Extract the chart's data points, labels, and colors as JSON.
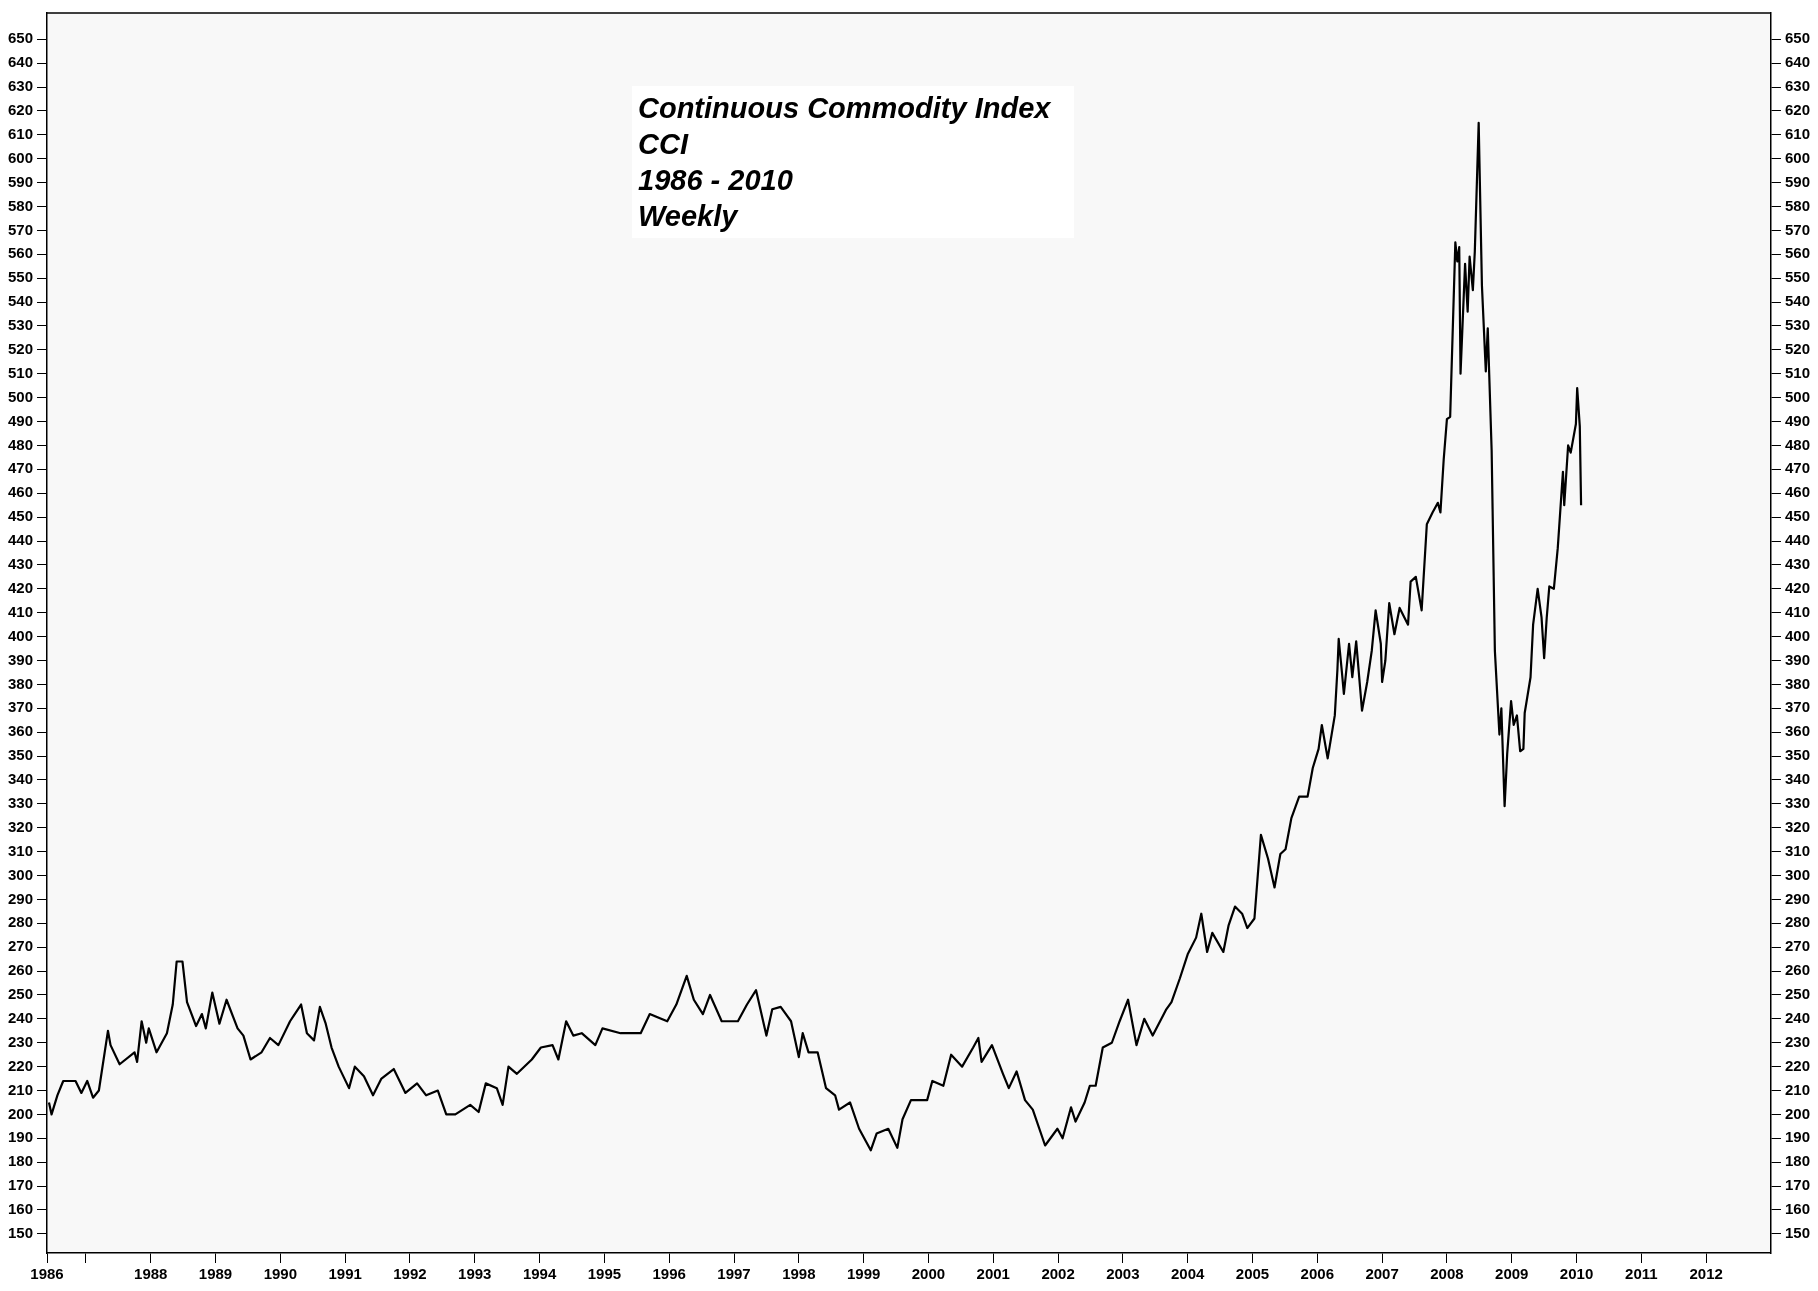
{
  "chart_data": {
    "type": "line",
    "title": "Continuous Commodity Index\nCCI\n1986 - 2010\nWeekly",
    "xlim": [
      1986.4,
      2013
    ],
    "xticks": [
      {
        "value": 1986.4,
        "label": "1986"
      },
      {
        "value": 1987,
        "label": null
      },
      {
        "value": 1988,
        "label": "1988"
      },
      {
        "value": 1989,
        "label": "1989"
      },
      {
        "value": 1990,
        "label": "1990"
      },
      {
        "value": 1991,
        "label": "1991"
      },
      {
        "value": 1992,
        "label": "1992"
      },
      {
        "value": 1993,
        "label": "1993"
      },
      {
        "value": 1994,
        "label": "1994"
      },
      {
        "value": 1995,
        "label": "1995"
      },
      {
        "value": 1996,
        "label": "1996"
      },
      {
        "value": 1997,
        "label": "1997"
      },
      {
        "value": 1998,
        "label": "1998"
      },
      {
        "value": 1999,
        "label": "1999"
      },
      {
        "value": 2000,
        "label": "2000"
      },
      {
        "value": 2001,
        "label": "2001"
      },
      {
        "value": 2002,
        "label": "2002"
      },
      {
        "value": 2003,
        "label": "2003"
      },
      {
        "value": 2004,
        "label": "2004"
      },
      {
        "value": 2005,
        "label": "2005"
      },
      {
        "value": 2006,
        "label": "2006"
      },
      {
        "value": 2007,
        "label": "2007"
      },
      {
        "value": 2008,
        "label": "2008"
      },
      {
        "value": 2009,
        "label": "2009"
      },
      {
        "value": 2010,
        "label": "2010"
      },
      {
        "value": 2011,
        "label": "2011"
      },
      {
        "value": 2012,
        "label": "2012"
      }
    ],
    "ylim": [
      142,
      661
    ],
    "yticks": [
      150,
      160,
      170,
      180,
      190,
      200,
      210,
      220,
      230,
      240,
      250,
      260,
      270,
      280,
      290,
      300,
      310,
      320,
      330,
      340,
      350,
      360,
      370,
      380,
      390,
      400,
      410,
      420,
      430,
      440,
      450,
      460,
      470,
      480,
      490,
      500,
      510,
      520,
      530,
      540,
      550,
      560,
      570,
      580,
      590,
      600,
      610,
      620,
      630,
      640,
      650
    ],
    "y2lim": [
      142,
      661
    ],
    "y2ticks": [
      150,
      160,
      170,
      180,
      190,
      200,
      210,
      220,
      230,
      240,
      250,
      260,
      270,
      280,
      290,
      300,
      310,
      320,
      330,
      340,
      350,
      360,
      370,
      380,
      390,
      400,
      410,
      420,
      430,
      440,
      450,
      460,
      470,
      480,
      490,
      500,
      510,
      520,
      530,
      540,
      550,
      560,
      570,
      580,
      590,
      600,
      610,
      620,
      630,
      640,
      650
    ],
    "grid": false,
    "marker": "none",
    "line_style": "solid",
    "series": [
      {
        "color": "#000000",
        "x": [
          1986.43,
          1986.47,
          1986.56,
          1986.65,
          1986.84,
          1986.93,
          1987.02,
          1987.11,
          1987.2,
          1987.34,
          1987.38,
          1987.52,
          1987.75,
          1987.79,
          1987.86,
          1987.93,
          1987.97,
          1988.09,
          1988.25,
          1988.34,
          1988.4,
          1988.49,
          1988.56,
          1988.7,
          1988.79,
          1988.85,
          1988.95,
          1989.06,
          1989.17,
          1989.34,
          1989.43,
          1989.54,
          1989.71,
          1989.84,
          1989.97,
          1990.15,
          1990.32,
          1990.41,
          1990.52,
          1990.61,
          1990.7,
          1990.79,
          1990.9,
          1991.06,
          1991.15,
          1991.29,
          1991.43,
          1991.56,
          1991.75,
          1991.93,
          1992.11,
          1992.25,
          1992.43,
          1992.56,
          1992.7,
          1992.93,
          1993.06,
          1993.17,
          1993.34,
          1993.43,
          1993.52,
          1993.65,
          1993.88,
          1994.02,
          1994.2,
          1994.29,
          1994.41,
          1994.52,
          1994.65,
          1994.86,
          1994.97,
          1995.25,
          1995.56,
          1995.7,
          1995.97,
          1996.11,
          1996.27,
          1996.38,
          1996.52,
          1996.63,
          1996.81,
          1997.06,
          1997.2,
          1997.34,
          1997.5,
          1997.59,
          1997.72,
          1997.88,
          1998.0,
          1998.06,
          1998.15,
          1998.29,
          1998.42,
          1998.56,
          1998.62,
          1998.79,
          1998.93,
          1999.11,
          1999.2,
          1999.38,
          1999.52,
          1999.6,
          1999.73,
          1999.98,
          2000.06,
          2000.23,
          2000.35,
          2000.52,
          2000.69,
          2000.77,
          2000.82,
          2000.98,
          2001.15,
          2001.24,
          2001.36,
          2001.49,
          2001.61,
          2001.8,
          2001.99,
          2002.07,
          2002.2,
          2002.27,
          2002.41,
          2002.49,
          2002.58,
          2002.69,
          2002.83,
          2002.95,
          2003.08,
          2003.21,
          2003.33,
          2003.46,
          2003.67,
          2003.75,
          2003.88,
          2004.0,
          2004.13,
          2004.21,
          2004.3,
          2004.38,
          2004.55,
          2004.63,
          2004.73,
          2004.84,
          2004.92,
          2005.03,
          2005.13,
          2005.24,
          2005.34,
          2005.43,
          2005.51,
          2005.6,
          2005.72,
          2005.85,
          2005.93,
          2006.02,
          2006.07,
          2006.16,
          2006.27,
          2006.31,
          2006.33,
          2006.38,
          2006.41,
          2006.49,
          2006.54,
          2006.6,
          2006.69,
          2006.77,
          2006.84,
          2006.9,
          2006.98,
          2007.0,
          2007.05,
          2007.11,
          2007.19,
          2007.27,
          2007.4,
          2007.44,
          2007.52,
          2007.61,
          2007.69,
          2007.78,
          2007.86,
          2007.9,
          2007.95,
          2008.0,
          2008.05,
          2008.13,
          2008.16,
          2008.19,
          2008.21,
          2008.28,
          2008.32,
          2008.35,
          2008.4,
          2008.43,
          2008.49,
          2008.54,
          2008.6,
          2008.63,
          2008.69,
          2008.74,
          2008.81,
          2008.84,
          2008.89,
          2008.93,
          2008.99,
          2009.03,
          2009.08,
          2009.13,
          2009.18,
          2009.2,
          2009.29,
          2009.33,
          2009.4,
          2009.46,
          2009.5,
          2009.54,
          2009.58,
          2009.65,
          2009.71,
          2009.79,
          2009.81,
          2009.87,
          2009.91,
          2009.99,
          2010.01,
          2010.05,
          2010.07
        ],
        "values": [
          205,
          200,
          208,
          214,
          214,
          209,
          214,
          207,
          210,
          235,
          229,
          221,
          226,
          222,
          239,
          230,
          236,
          226,
          234,
          246,
          264,
          264,
          247,
          237,
          242,
          236,
          251,
          238,
          248,
          236,
          233,
          223,
          226,
          232,
          229,
          239,
          246,
          234,
          231,
          245,
          238,
          228,
          220,
          211,
          220,
          216,
          208,
          215,
          219,
          209,
          213,
          208,
          210,
          200,
          200,
          204,
          201,
          213,
          211,
          204,
          220,
          217,
          223,
          228,
          229,
          223,
          239,
          233,
          234,
          229,
          236,
          234,
          234,
          242,
          239,
          246,
          258,
          248,
          242,
          250,
          239,
          239,
          246,
          252,
          233,
          244,
          245,
          239,
          224,
          234,
          226,
          226,
          211,
          208,
          202,
          205,
          194,
          185,
          192,
          194,
          186,
          198,
          206,
          206,
          214,
          212,
          225,
          220,
          228,
          232,
          222,
          229,
          217,
          211,
          218,
          206,
          202,
          187,
          194,
          190,
          203,
          197,
          205,
          212,
          212,
          228,
          230,
          239,
          248,
          229,
          240,
          233,
          244,
          247,
          257,
          267,
          274,
          284,
          268,
          276,
          268,
          279,
          287,
          284,
          278,
          282,
          317,
          307,
          295,
          309,
          311,
          324,
          333,
          333,
          345,
          353,
          363,
          349,
          367,
          386,
          399,
          385,
          376,
          397,
          383,
          398,
          369,
          381,
          394,
          411,
          397,
          381,
          390,
          414,
          401,
          412,
          405,
          423,
          425,
          411,
          447,
          452,
          456,
          452,
          474,
          491,
          492,
          565,
          557,
          563,
          510,
          556,
          536,
          559,
          545,
          561,
          615,
          547,
          511,
          529,
          478,
          394,
          359,
          370,
          329,
          351,
          373,
          363,
          367,
          352,
          353,
          368,
          383,
          405,
          420,
          408,
          391,
          408,
          421,
          420,
          437,
          469,
          455,
          480,
          477,
          489,
          504,
          488,
          455
        ]
      }
    ]
  }
}
